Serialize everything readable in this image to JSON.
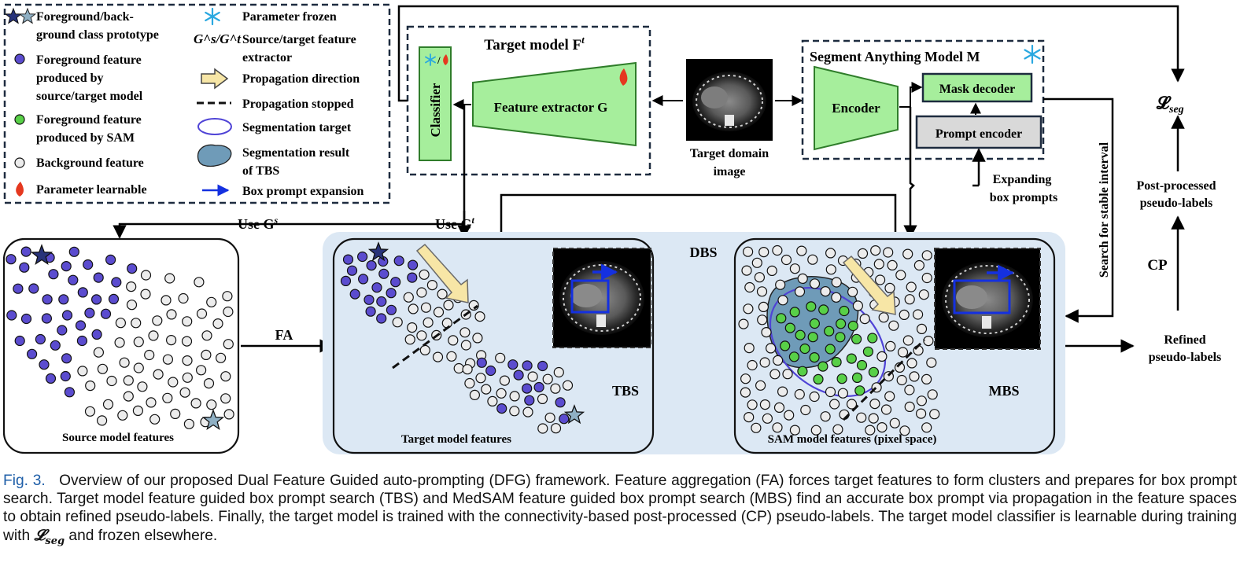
{
  "legend": {
    "prototype": [
      "Foreground/back-",
      "ground class prototype"
    ],
    "fg_model": [
      "Foreground feature",
      "produced by",
      "source/target model"
    ],
    "fg_sam": [
      "Foreground feature",
      "produced by SAM"
    ],
    "bg": "Background feature",
    "learnable": "Parameter learnable",
    "frozen": "Parameter frozen",
    "extractor": [
      "G^s/G^t",
      "Source/target feature",
      "extractor"
    ],
    "propagation": "Propagation direction",
    "stopped": "Propagation stopped",
    "target": "Segmentation target",
    "tbs_result": [
      "Segmentation result",
      "of TBS"
    ],
    "box_expansion": "Box prompt expansion"
  },
  "target_model": {
    "title": "Target model F",
    "title_sup": "t",
    "classifier": "Classifier",
    "extractor": "Feature extractor G"
  },
  "image_label": [
    "Target domain",
    "image"
  ],
  "sam": {
    "title": "Segment Anything  Model M",
    "encoder": "Encoder",
    "mask_decoder": "Mask decoder",
    "prompt_encoder": "Prompt encoder"
  },
  "labels": {
    "loss": "𝓛",
    "loss_sub": "seg",
    "post_processed": [
      "Post-processed",
      "pseudo-labels"
    ],
    "cp": "CP",
    "refined": [
      "Refined",
      "pseudo-labels"
    ],
    "search": "Search for stable interval",
    "expanding": [
      "Expanding",
      "box prompts"
    ],
    "use_gs": "Use G",
    "use_gs_sup": "s",
    "use_gt": "Use G",
    "use_gt_sup": "t",
    "fa": "FA",
    "dbs": "DBS",
    "tbs": "TBS",
    "mbs": "MBS"
  },
  "panels": {
    "source": "Source model features",
    "target": "Target model features",
    "sam": "SAM model features (pixel space)"
  },
  "caption": {
    "fig": "Fig. 3.",
    "text": "Overview of our proposed Dual Feature Guided auto-prompting (DFG) framework. Feature aggregation (FA) forces target features to form clusters and prepares for box prompt search. Target model feature guided box prompt search (TBS) and MedSAM feature guided box prompt search (MBS) find an accurate box prompt via propagation in the feature spaces to obtain refined pseudo-labels. Finally, the target model is trained with the connectivity-based post-processed (CP) pseudo-labels. The target model classifier is learnable during training with ",
    "loss": "𝓛",
    "loss_sub": "seg",
    "tail": " and frozen elsewhere."
  },
  "colors": {
    "green_fill": "#a6ee9c",
    "green_dark": "#2f7d2a",
    "purple": "#5b4ccf",
    "sam_green": "#58d047",
    "dbs_bg": "#dce8f4",
    "tbs_blob": "#6f9bb8",
    "box": "#1430e0",
    "arrow_fill": "#f7e6a6",
    "arrow_edge": "#6b6b6b"
  }
}
